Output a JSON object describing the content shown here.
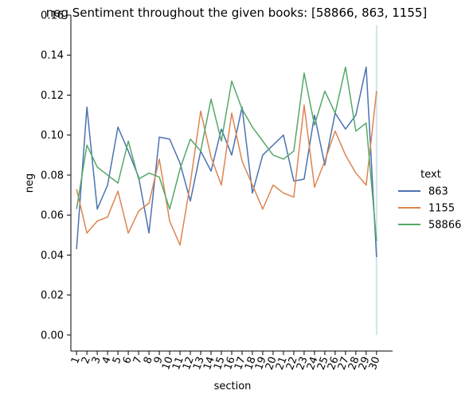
{
  "chart_data": {
    "type": "line",
    "title": "neg Sentiment throughout the given books: [58866, 863, 1155]",
    "xlabel": "section",
    "ylabel": "neg",
    "x": [
      1,
      2,
      3,
      4,
      5,
      6,
      7,
      8,
      9,
      10,
      11,
      12,
      13,
      14,
      15,
      16,
      17,
      18,
      19,
      20,
      21,
      22,
      23,
      24,
      25,
      26,
      27,
      28,
      29,
      30
    ],
    "x_tick_labels": [
      "1",
      "2",
      "3",
      "4",
      "5",
      "6",
      "7",
      "8",
      "9",
      "10",
      "11",
      "12",
      "13",
      "14",
      "15",
      "16",
      "17",
      "18",
      "19",
      "20",
      "21",
      "22",
      "23",
      "24",
      "25",
      "26",
      "27",
      "28",
      "29",
      "30"
    ],
    "ylim": [
      -0.008,
      0.16
    ],
    "y_ticks": [
      0.0,
      0.02,
      0.04,
      0.06,
      0.08,
      0.1,
      0.12,
      0.14,
      0.16
    ],
    "y_tick_labels": [
      "0.00",
      "0.02",
      "0.04",
      "0.06",
      "0.08",
      "0.10",
      "0.12",
      "0.14",
      "0.16"
    ],
    "legend_title": "text",
    "legend_position": "right",
    "series": [
      {
        "name": "863",
        "color": "#4c72b0",
        "values": [
          0.043,
          0.114,
          0.063,
          0.075,
          0.104,
          0.092,
          0.079,
          0.051,
          0.099,
          0.098,
          0.086,
          0.067,
          0.092,
          0.082,
          0.103,
          0.09,
          0.114,
          0.071,
          0.09,
          0.095,
          0.1,
          0.077,
          0.078,
          0.11,
          0.085,
          0.111,
          0.103,
          0.11,
          0.134,
          0.039
        ]
      },
      {
        "name": "1155",
        "color": "#dd8452",
        "values": [
          0.073,
          0.051,
          0.057,
          0.059,
          0.072,
          0.051,
          0.062,
          0.066,
          0.088,
          0.057,
          0.045,
          0.076,
          0.112,
          0.089,
          0.075,
          0.111,
          0.087,
          0.075,
          0.063,
          0.075,
          0.071,
          0.069,
          0.115,
          0.074,
          0.087,
          0.102,
          0.09,
          0.081,
          0.075,
          0.122
        ]
      },
      {
        "name": "58866",
        "color": "#55a868",
        "values": [
          0.063,
          0.095,
          0.084,
          0.08,
          0.076,
          0.097,
          0.078,
          0.081,
          0.079,
          0.063,
          0.083,
          0.098,
          0.092,
          0.118,
          0.097,
          0.127,
          0.113,
          0.104,
          0.097,
          0.09,
          0.088,
          0.092,
          0.131,
          0.105,
          0.122,
          0.111,
          0.134,
          0.102,
          0.106,
          0.047
        ]
      }
    ],
    "errorband_last_x": {
      "x": 30,
      "low": 0.0,
      "high": 0.155
    }
  }
}
